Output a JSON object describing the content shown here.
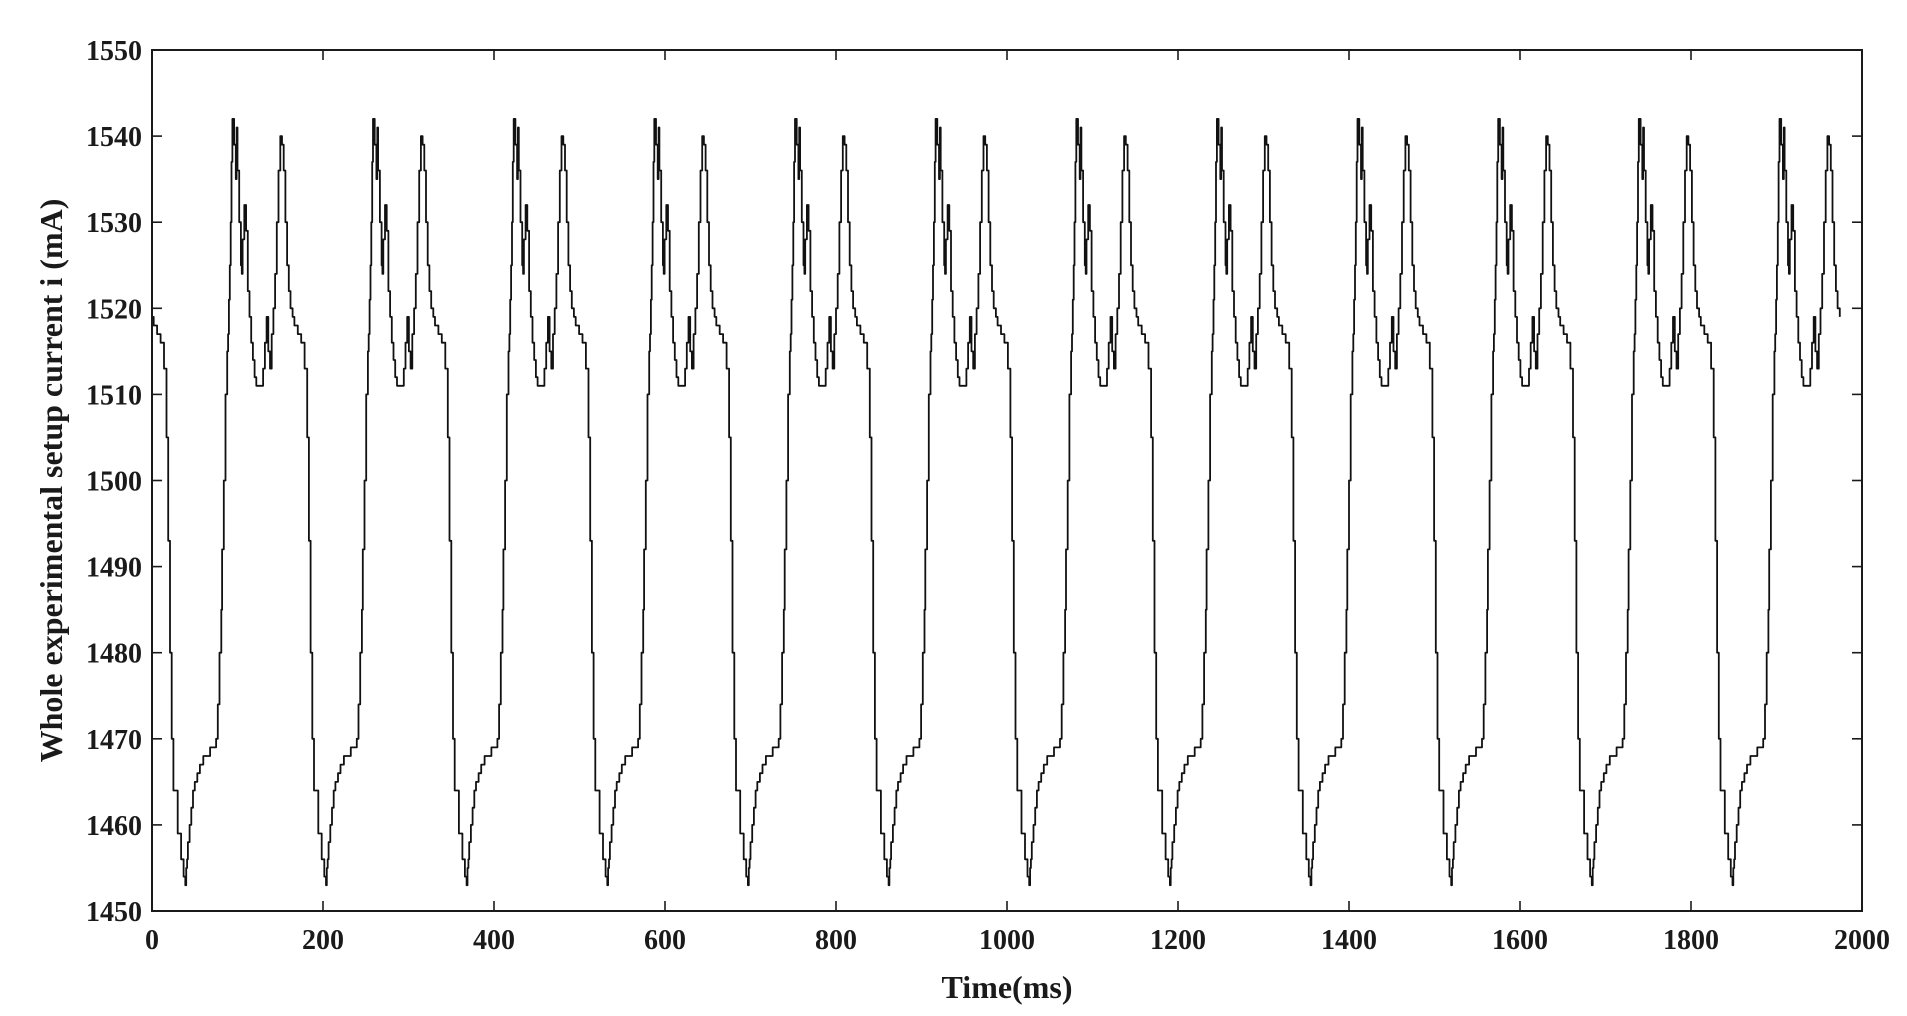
{
  "chart_data": {
    "type": "line",
    "title": "",
    "xlabel": "Time(ms)",
    "ylabel": "Whole experimental setup current i (mA)",
    "xlim": [
      0,
      2000
    ],
    "ylim": [
      1450,
      1550
    ],
    "grid": false,
    "legend": "none",
    "x_ticks": [
      "0",
      "200",
      "400",
      "600",
      "800",
      "1000",
      "1200",
      "1400",
      "1600",
      "1800",
      "2000"
    ],
    "y_ticks": [
      "1450",
      "1460",
      "1470",
      "1480",
      "1490",
      "1500",
      "1510",
      "1520",
      "1530",
      "1540",
      "1550"
    ],
    "line_color": "#111111",
    "period_ms": 164.5,
    "cycle_starts_ms": [
      0,
      164.5,
      329,
      493.5,
      658,
      822.5,
      987,
      1151.5,
      1316,
      1480.5,
      1645,
      1809.5
    ],
    "cycle_shape": {
      "x_offset_ms": [
        0,
        2,
        6,
        10,
        14,
        17,
        19,
        21,
        23,
        25,
        30,
        34,
        37,
        39,
        40,
        41,
        42,
        44,
        46,
        48,
        50,
        53,
        56,
        60,
        62,
        65,
        68,
        72,
        75,
        77,
        79,
        81,
        82,
        84,
        86,
        88,
        89,
        90,
        91,
        92,
        93,
        94,
        96,
        98,
        99,
        100,
        102,
        104,
        105,
        106,
        108,
        110,
        112,
        114,
        116,
        118,
        120,
        122,
        124,
        126,
        128,
        130,
        132,
        134,
        136,
        138,
        140,
        142,
        144,
        146,
        148,
        150,
        152,
        154,
        156,
        158,
        160,
        162,
        164.5
      ],
      "current_mA": [
        1519,
        1518,
        1517,
        1516,
        1513,
        1505,
        1493,
        1480,
        1470,
        1464,
        1459,
        1456,
        1454,
        1453,
        1455,
        1456,
        1458,
        1460,
        1462,
        1464,
        1465,
        1466,
        1467,
        1468,
        1468,
        1468,
        1469,
        1469,
        1470,
        1474,
        1480,
        1485,
        1492,
        1500,
        1510,
        1515,
        1517,
        1521,
        1525,
        1530,
        1537,
        1542,
        1539,
        1535,
        1541,
        1536,
        1530,
        1525,
        1524,
        1528,
        1532,
        1529,
        1522,
        1519,
        1516,
        1514,
        1512,
        1511,
        1511,
        1511,
        1511,
        1513,
        1516,
        1519,
        1515,
        1513,
        1517,
        1520,
        1524,
        1530,
        1536,
        1540,
        1539,
        1536,
        1530,
        1525,
        1522,
        1520,
        1519
      ]
    }
  }
}
